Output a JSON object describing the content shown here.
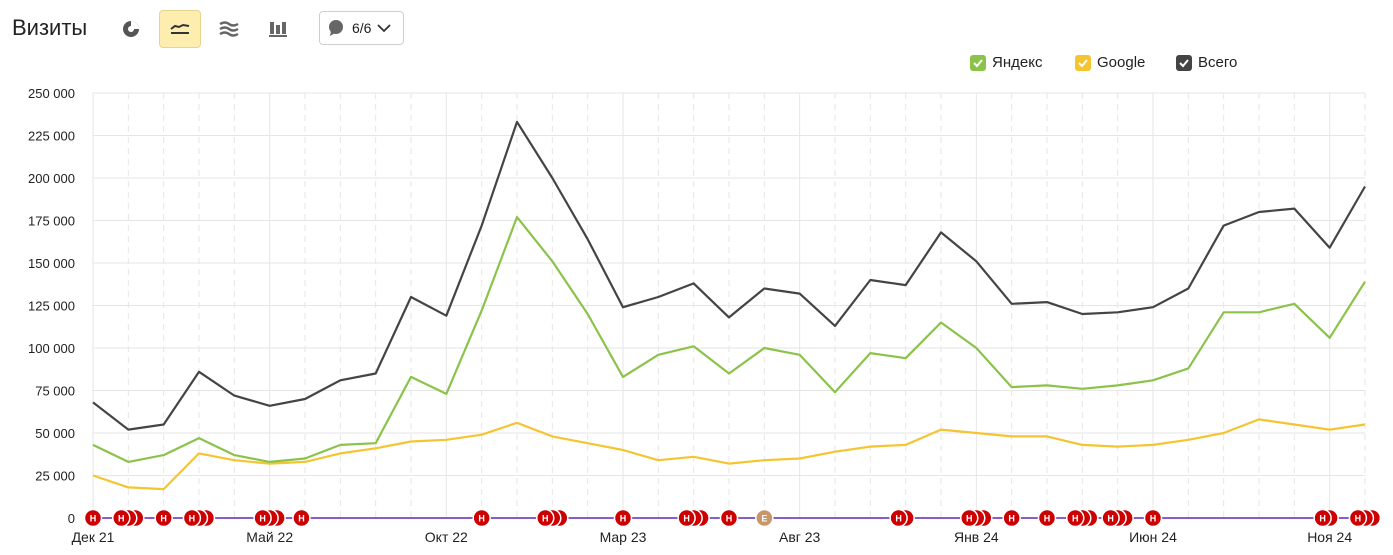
{
  "header": {
    "title": "Визиты",
    "annotations_count": "6/6"
  },
  "colors": {
    "yandex": "#8bc34a",
    "google": "#f5c431",
    "total": "#444444",
    "grid": "#e6e6e6",
    "marker_red": "#cc0000",
    "marker_tan": "#c8966a"
  },
  "icons": [
    "pie-chart-icon",
    "line-chart-icon",
    "stacked-area-icon",
    "bar-chart-icon",
    "comment-icon",
    "chevron-down-icon"
  ],
  "legend": {
    "yandex": "Яндекс",
    "google": "Google",
    "total": "Всего"
  },
  "chart_data": {
    "type": "line",
    "ylim": [
      0,
      250000
    ],
    "yticks": [
      0,
      25000,
      50000,
      75000,
      100000,
      125000,
      150000,
      175000,
      200000,
      225000,
      250000
    ],
    "ytick_labels": [
      "0",
      "25 000",
      "50 000",
      "75 000",
      "100 000",
      "125 000",
      "150 000",
      "175 000",
      "200 000",
      "225 000",
      "250 000"
    ],
    "x": [
      "2021-12",
      "2022-01",
      "2022-02",
      "2022-03",
      "2022-04",
      "2022-05",
      "2022-06",
      "2022-07",
      "2022-08",
      "2022-09",
      "2022-10",
      "2022-11",
      "2022-12",
      "2023-01",
      "2023-02",
      "2023-03",
      "2023-04",
      "2023-05",
      "2023-06",
      "2023-07",
      "2023-08",
      "2023-09",
      "2023-10",
      "2023-11",
      "2023-12",
      "2024-01",
      "2024-02",
      "2024-03",
      "2024-04",
      "2024-05",
      "2024-06",
      "2024-07",
      "2024-08",
      "2024-09",
      "2024-10",
      "2024-11",
      "2024-12"
    ],
    "xtick_labels": [
      {
        "x": "2021-12",
        "label": "Дек 21"
      },
      {
        "x": "2022-05",
        "label": "Май 22"
      },
      {
        "x": "2022-10",
        "label": "Окт 22"
      },
      {
        "x": "2023-03",
        "label": "Мар 23"
      },
      {
        "x": "2023-08",
        "label": "Авг 23"
      },
      {
        "x": "2024-01",
        "label": "Янв 24"
      },
      {
        "x": "2024-06",
        "label": "Июн 24"
      },
      {
        "x": "2024-11",
        "label": "Ноя 24"
      }
    ],
    "series": [
      {
        "name": "Яндекс",
        "values": [
          43000,
          33000,
          37000,
          47000,
          37000,
          33000,
          35000,
          43000,
          44000,
          83000,
          73000,
          122000,
          177000,
          151000,
          120000,
          83000,
          96000,
          101000,
          85000,
          100000,
          96000,
          74000,
          97000,
          94000,
          115000,
          100000,
          77000,
          78000,
          76000,
          78000,
          81000,
          88000,
          121000,
          121000,
          126000,
          106000,
          139000
        ]
      },
      {
        "name": "Google",
        "values": [
          25000,
          18000,
          17000,
          38000,
          34000,
          32000,
          33000,
          38000,
          41000,
          45000,
          46000,
          49000,
          56000,
          48000,
          44000,
          40000,
          34000,
          36000,
          32000,
          34000,
          35000,
          39000,
          42000,
          43000,
          52000,
          50000,
          48000,
          48000,
          43000,
          42000,
          43000,
          46000,
          50000,
          58000,
          55000,
          52000,
          55000
        ]
      },
      {
        "name": "Всего",
        "values": [
          68000,
          52000,
          55000,
          86000,
          72000,
          66000,
          70000,
          81000,
          85000,
          130000,
          119000,
          172000,
          233000,
          200000,
          164000,
          124000,
          130000,
          138000,
          118000,
          135000,
          132000,
          113000,
          140000,
          137000,
          168000,
          151000,
          126000,
          127000,
          120000,
          121000,
          124000,
          135000,
          172000,
          180000,
          182000,
          159000,
          195000
        ]
      }
    ],
    "baseline_series": [
      {
        "values": [
          0,
          0,
          0,
          0,
          0,
          0,
          0,
          0,
          0,
          0,
          0,
          0,
          0,
          0,
          0,
          0,
          0,
          0,
          0,
          0,
          0,
          0,
          0,
          0,
          0,
          0,
          0,
          0,
          0,
          0,
          0,
          0,
          0,
          0,
          0,
          0,
          0
        ],
        "color": "#8a5cc8"
      }
    ],
    "annotation_markers": [
      {
        "x": 0,
        "count": 1,
        "letter": "Н",
        "color": "#cc0000"
      },
      {
        "x": 0.8,
        "count": 3,
        "letter": "Н",
        "color": "#cc0000"
      },
      {
        "x": 2,
        "count": 1,
        "letter": "Н",
        "color": "#cc0000"
      },
      {
        "x": 2.8,
        "count": 3,
        "letter": "Н",
        "color": "#cc0000"
      },
      {
        "x": 4.8,
        "count": 3,
        "letter": "Н",
        "color": "#cc0000"
      },
      {
        "x": 5.9,
        "count": 1,
        "letter": "Н",
        "color": "#cc0000"
      },
      {
        "x": 11,
        "count": 1,
        "letter": "Н",
        "color": "#cc0000"
      },
      {
        "x": 12.8,
        "count": 3,
        "letter": "Н",
        "color": "#cc0000"
      },
      {
        "x": 15,
        "count": 1,
        "letter": "Н",
        "color": "#cc0000"
      },
      {
        "x": 16.8,
        "count": 3,
        "letter": "Н",
        "color": "#cc0000"
      },
      {
        "x": 18,
        "count": 1,
        "letter": "Н",
        "color": "#cc0000"
      },
      {
        "x": 19,
        "count": 1,
        "letter": "Е",
        "color": "#c8966a"
      },
      {
        "x": 22.8,
        "count": 2,
        "letter": "Н",
        "color": "#cc0000"
      },
      {
        "x": 24.8,
        "count": 3,
        "letter": "Н",
        "color": "#cc0000"
      },
      {
        "x": 26,
        "count": 1,
        "letter": "Н",
        "color": "#cc0000"
      },
      {
        "x": 27,
        "count": 1,
        "letter": "Н",
        "color": "#cc0000"
      },
      {
        "x": 27.8,
        "count": 3,
        "letter": "Н",
        "color": "#cc0000"
      },
      {
        "x": 28.8,
        "count": 3,
        "letter": "Н",
        "color": "#cc0000"
      },
      {
        "x": 30,
        "count": 1,
        "letter": "Н",
        "color": "#cc0000"
      },
      {
        "x": 34.8,
        "count": 2,
        "letter": "Н",
        "color": "#cc0000"
      },
      {
        "x": 35.8,
        "count": 3,
        "letter": "Н",
        "color": "#cc0000"
      }
    ]
  }
}
